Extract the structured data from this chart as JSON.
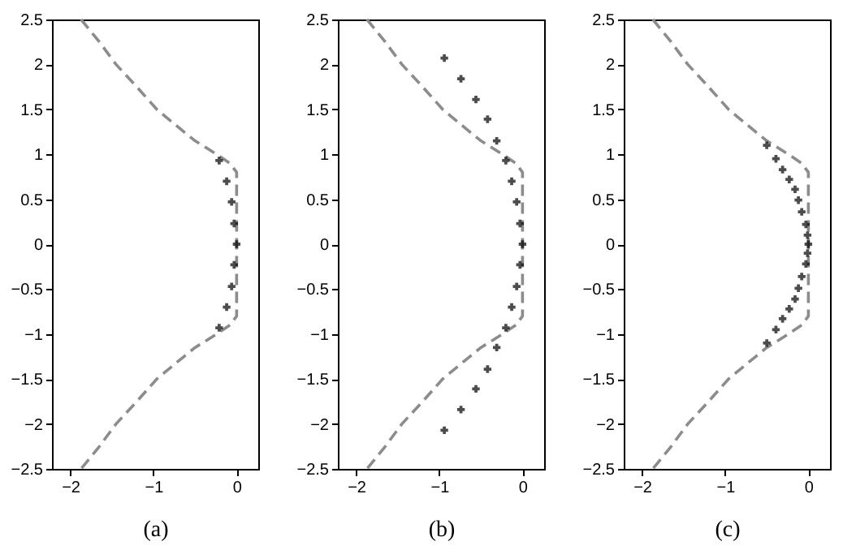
{
  "chart_data": [
    {
      "type": "scatter",
      "xlabel": "(a)",
      "xlim": [
        -2.22,
        0.26
      ],
      "ylim": [
        -2.5,
        2.5
      ],
      "xticks": [
        -2,
        -1,
        0
      ],
      "yticks": [
        -2.5,
        -2,
        -1.5,
        -1,
        -0.5,
        0,
        0.5,
        1,
        1.5,
        2,
        2.5
      ],
      "grid": false,
      "series": [
        {
          "type": "line",
          "line_style": "dashed",
          "marker": "none",
          "color": "#8c8c8c",
          "x": [
            -1.87,
            -1.65,
            -1.45,
            -1.2,
            -0.96,
            -0.7,
            -0.5,
            -0.24,
            -0.08,
            0,
            0,
            0,
            -0.08,
            -0.24,
            -0.5,
            -0.7,
            -0.96,
            -1.2,
            -1.45,
            -1.65,
            -1.87
          ],
          "values": [
            2.5,
            2.25,
            2,
            1.75,
            1.5,
            1.3,
            1.15,
            1,
            0.9,
            0.8,
            0,
            -0.8,
            -0.9,
            -1,
            -1.15,
            -1.3,
            -1.5,
            -1.75,
            -2,
            -2.25,
            -2.5
          ]
        },
        {
          "type": "scatter",
          "marker": "cross",
          "color": "#000000",
          "x": [
            -0.21,
            -0.12,
            -0.06,
            -0.03,
            0,
            -0.03,
            -0.06,
            -0.12,
            -0.21
          ],
          "values": [
            0.93,
            0.7,
            0.47,
            0.23,
            0,
            -0.23,
            -0.47,
            -0.7,
            -0.93
          ]
        }
      ]
    },
    {
      "type": "scatter",
      "xlabel": "(b)",
      "xlim": [
        -2.22,
        0.26
      ],
      "ylim": [
        -2.5,
        2.5
      ],
      "xticks": [
        -2,
        -1,
        0
      ],
      "yticks": [
        -2.5,
        -2,
        -1.5,
        -1,
        -0.5,
        0,
        0.5,
        1,
        1.5,
        2,
        2.5
      ],
      "grid": false,
      "series": [
        {
          "type": "line",
          "line_style": "dashed",
          "marker": "none",
          "color": "#8c8c8c",
          "x": [
            -1.87,
            -1.65,
            -1.45,
            -1.2,
            -0.96,
            -0.7,
            -0.5,
            -0.24,
            -0.08,
            0,
            0,
            0,
            -0.08,
            -0.24,
            -0.5,
            -0.7,
            -0.96,
            -1.2,
            -1.45,
            -1.65,
            -1.87
          ],
          "values": [
            2.5,
            2.25,
            2,
            1.75,
            1.5,
            1.3,
            1.15,
            1,
            0.9,
            0.8,
            0,
            -0.8,
            -0.9,
            -1,
            -1.15,
            -1.3,
            -1.5,
            -1.75,
            -2,
            -2.25,
            -2.5
          ]
        },
        {
          "type": "scatter",
          "marker": "cross",
          "color": "#000000",
          "x": [
            -0.94,
            -0.74,
            -0.56,
            -0.42,
            -0.31,
            -0.2,
            -0.13,
            -0.07,
            -0.03,
            0,
            -0.03,
            -0.07,
            -0.13,
            -0.2,
            -0.31,
            -0.42,
            -0.56,
            -0.74,
            -0.94
          ],
          "values": [
            2.07,
            1.84,
            1.61,
            1.39,
            1.15,
            0.93,
            0.7,
            0.47,
            0.23,
            0,
            -0.23,
            -0.47,
            -0.7,
            -0.93,
            -1.15,
            -1.39,
            -1.61,
            -1.84,
            -2.07
          ]
        }
      ]
    },
    {
      "type": "scatter",
      "xlabel": "(c)",
      "xlim": [
        -2.22,
        0.26
      ],
      "ylim": [
        -2.5,
        2.5
      ],
      "xticks": [
        -2,
        -1,
        0
      ],
      "yticks": [
        -2.5,
        -2,
        -1.5,
        -1,
        -0.5,
        0,
        0.5,
        1,
        1.5,
        2,
        2.5
      ],
      "grid": false,
      "series": [
        {
          "type": "line",
          "line_style": "dashed",
          "marker": "none",
          "color": "#8c8c8c",
          "x": [
            -1.87,
            -1.65,
            -1.45,
            -1.2,
            -0.96,
            -0.7,
            -0.5,
            -0.24,
            -0.08,
            0,
            0,
            0,
            -0.08,
            -0.24,
            -0.5,
            -0.7,
            -0.96,
            -1.2,
            -1.45,
            -1.65,
            -1.87
          ],
          "values": [
            2.5,
            2.25,
            2,
            1.75,
            1.5,
            1.3,
            1.15,
            1,
            0.9,
            0.8,
            0,
            -0.8,
            -0.9,
            -1,
            -1.15,
            -1.3,
            -1.5,
            -1.75,
            -2,
            -2.25,
            -2.5
          ]
        },
        {
          "type": "scatter",
          "marker": "cross",
          "color": "#000000",
          "x": [
            -0.5,
            -0.39,
            -0.31,
            -0.23,
            -0.16,
            -0.12,
            -0.08,
            -0.03,
            -0.01,
            0,
            -0.01,
            -0.03,
            -0.08,
            -0.12,
            -0.16,
            -0.23,
            -0.31,
            -0.39,
            -0.5
          ],
          "values": [
            1.1,
            0.95,
            0.83,
            0.72,
            0.61,
            0.49,
            0.36,
            0.22,
            0.1,
            0,
            -0.1,
            -0.22,
            -0.36,
            -0.49,
            -0.61,
            -0.72,
            -0.83,
            -0.95,
            -1.1
          ]
        }
      ]
    }
  ]
}
